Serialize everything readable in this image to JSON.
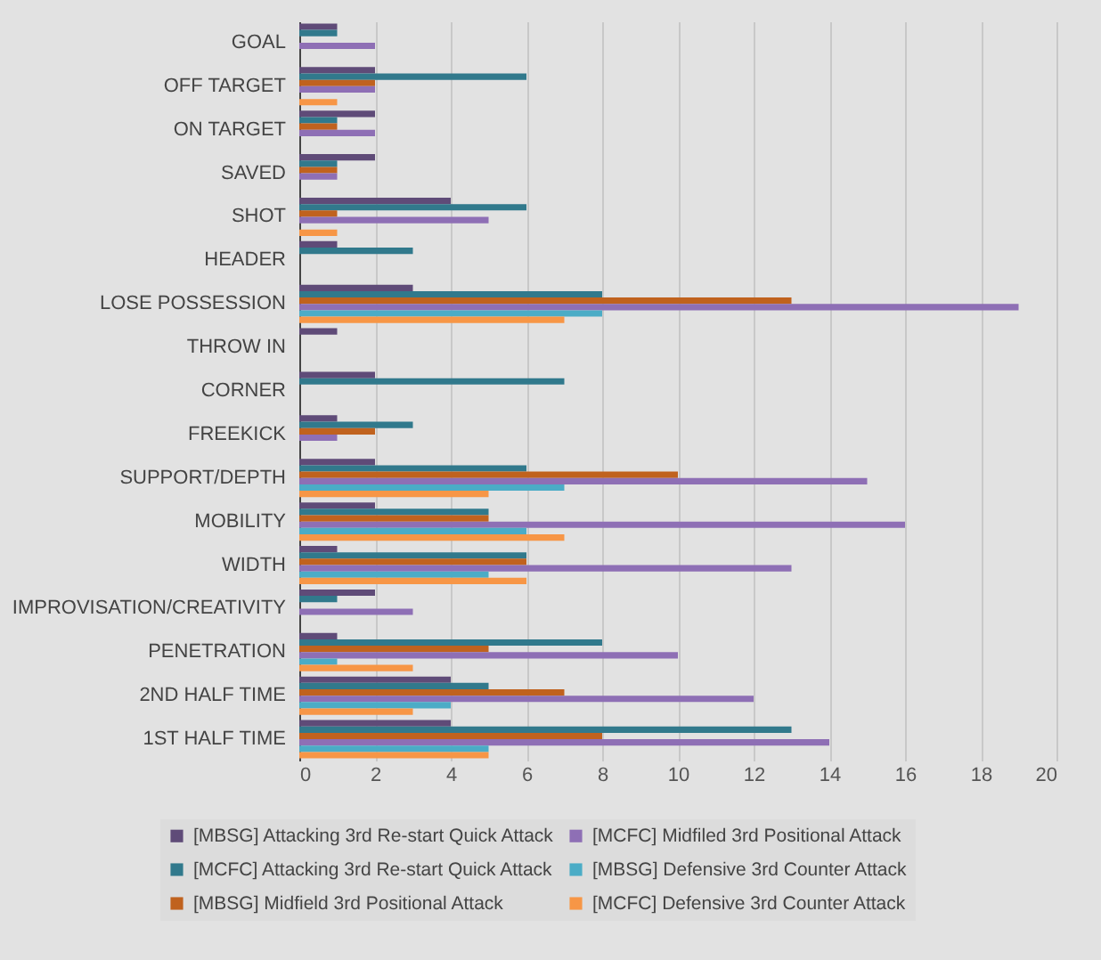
{
  "chart_data": {
    "type": "bar",
    "orientation": "horizontal",
    "categories": [
      "GOAL",
      "OFF TARGET",
      "ON TARGET",
      "SAVED",
      "SHOT",
      "HEADER",
      "LOSE POSSESSION",
      "THROW IN",
      "CORNER",
      "FREEKICK",
      "SUPPORT/DEPTH",
      "MOBILITY",
      "WIDTH",
      "IMPROVISATION/CREATIVITY",
      "PENETRATION",
      "2ND HALF TIME",
      "1ST HALF TIME"
    ],
    "series": [
      {
        "name": "[MBSG] Attacking 3rd Re-start Quick Attack",
        "color": "#5f4b78",
        "values": [
          1,
          2,
          2,
          2,
          4,
          1,
          3,
          1,
          2,
          1,
          2,
          2,
          1,
          2,
          1,
          4,
          4
        ]
      },
      {
        "name": "[MCFC] Attacking 3rd Re-start Quick Attack",
        "color": "#31798c",
        "values": [
          1,
          6,
          1,
          1,
          6,
          3,
          8,
          0,
          7,
          3,
          6,
          5,
          6,
          1,
          8,
          5,
          13
        ]
      },
      {
        "name": "[MBSG] Midfield 3rd Positional Attack",
        "color": "#c0621e",
        "values": [
          0,
          2,
          1,
          1,
          1,
          0,
          13,
          0,
          0,
          2,
          10,
          5,
          6,
          0,
          5,
          7,
          8
        ]
      },
      {
        "name": "[MCFC] Midfiled 3rd Positional Attack",
        "color": "#8e6fb5",
        "values": [
          2,
          2,
          2,
          1,
          5,
          0,
          19,
          0,
          0,
          1,
          15,
          16,
          13,
          3,
          10,
          12,
          14
        ]
      },
      {
        "name": "[MBSG] Defensive 3rd Counter Attack",
        "color": "#4bacc6",
        "values": [
          0,
          0,
          0,
          0,
          0,
          0,
          8,
          0,
          0,
          0,
          7,
          6,
          5,
          0,
          1,
          4,
          5
        ]
      },
      {
        "name": "[MCFC] Defensive 3rd Counter Attack",
        "color": "#f79646",
        "values": [
          0,
          1,
          0,
          0,
          1,
          0,
          7,
          0,
          0,
          0,
          5,
          7,
          6,
          0,
          3,
          3,
          5
        ]
      }
    ],
    "xlim": [
      0,
      20
    ],
    "xticks": [
      0,
      2,
      4,
      6,
      8,
      10,
      12,
      14,
      16,
      18,
      20
    ],
    "grid": "x",
    "legend": "bottom"
  }
}
